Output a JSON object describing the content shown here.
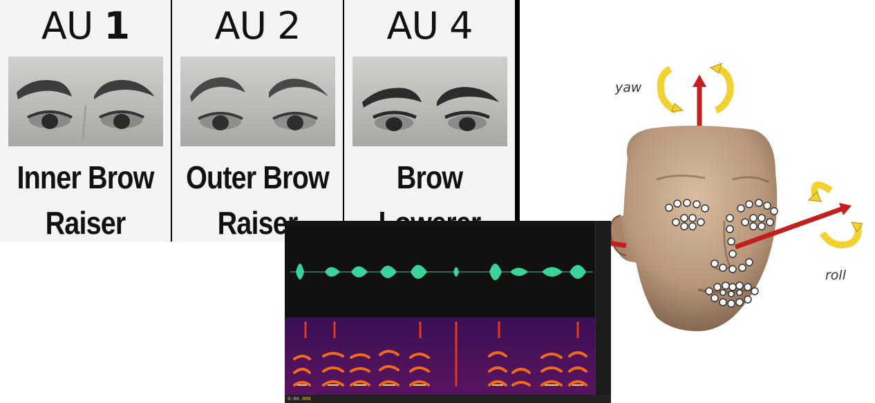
{
  "action_units": [
    {
      "code": "AU",
      "number": "1",
      "line1": "Inner Brow",
      "line2": "Raiser"
    },
    {
      "code": "AU",
      "number": "2",
      "line1": "Outer Brow",
      "line2": "Raiser"
    },
    {
      "code": "AU",
      "number": "4",
      "line1": "Brow",
      "line2": "Lowerer"
    }
  ],
  "head_pose": {
    "yaw_label": "yaw",
    "roll_label": "roll"
  },
  "audio": {
    "timecode": "0:00.000"
  },
  "colors": {
    "waveform": "#3ad39a",
    "arrow_red": "#c21f1f",
    "arrow_yellow": "#f2d230",
    "skin": "#c7a78a"
  }
}
